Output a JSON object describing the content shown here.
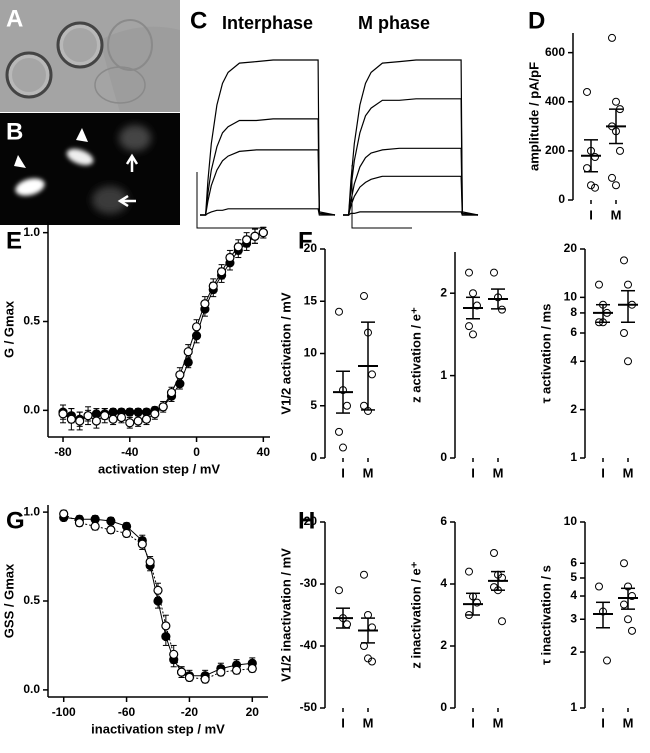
{
  "chart_data": [
    {
      "type": "image",
      "panel": "A"
    },
    {
      "type": "image",
      "panel": "B"
    },
    {
      "type": "line",
      "panel": "C",
      "title": "Interphase",
      "xlim": [
        -0.05,
        1.15
      ],
      "ylim": [
        0,
        1
      ],
      "x": [
        -0.05,
        0,
        0.02,
        0.05,
        0.1,
        0.15,
        0.2,
        0.3,
        0.45,
        0.6,
        0.8,
        1.0,
        1.01,
        1.15
      ],
      "series": [
        {
          "color": "#000000",
          "values": [
            0,
            0,
            0.22,
            0.46,
            0.71,
            0.85,
            0.92,
            0.98,
            0.99,
            1,
            1,
            1,
            0.02,
            0
          ]
        },
        {
          "color": "#000000",
          "values": [
            0,
            0,
            0.14,
            0.29,
            0.44,
            0.53,
            0.57,
            0.61,
            0.61,
            0.62,
            0.62,
            0.62,
            0.01,
            0
          ]
        },
        {
          "color": "#000000",
          "values": [
            0,
            0,
            0.09,
            0.19,
            0.29,
            0.35,
            0.38,
            0.41,
            0.42,
            0.42,
            0.42,
            0.42,
            0.01,
            0
          ]
        },
        {
          "color": "#000000",
          "values": [
            0,
            0,
            0.01,
            0.02,
            0.03,
            0.03,
            0.04,
            0.04,
            0.04,
            0.04,
            0.04,
            0.04,
            0,
            0
          ]
        }
      ]
    },
    {
      "type": "line",
      "title": "M phase",
      "xlim": [
        -0.05,
        1.15
      ],
      "ylim": [
        0,
        1
      ],
      "x": [
        -0.05,
        0,
        0.02,
        0.05,
        0.1,
        0.15,
        0.2,
        0.3,
        0.45,
        0.6,
        0.8,
        1.0,
        1.01,
        1.15
      ],
      "series": [
        {
          "color": "#000000",
          "values": [
            0,
            0,
            0.22,
            0.46,
            0.71,
            0.85,
            0.92,
            0.98,
            0.99,
            1,
            1,
            1,
            0.02,
            0
          ]
        },
        {
          "color": "#000000",
          "values": [
            0,
            0,
            0.17,
            0.35,
            0.53,
            0.64,
            0.69,
            0.74,
            0.74,
            0.75,
            0.75,
            0.75,
            0.01,
            0
          ]
        },
        {
          "color": "#000000",
          "values": [
            0,
            0,
            0.09,
            0.2,
            0.31,
            0.37,
            0.4,
            0.42,
            0.43,
            0.43,
            0.43,
            0.43,
            0.01,
            0
          ]
        },
        {
          "color": "#000000",
          "values": [
            0,
            0,
            0.06,
            0.12,
            0.18,
            0.21,
            0.23,
            0.25,
            0.25,
            0.25,
            0.25,
            0.25,
            0,
            0
          ]
        },
        {
          "color": "#000000",
          "values": [
            0,
            0,
            0.01,
            0.01,
            0.02,
            0.02,
            0.02,
            0.02,
            0.02,
            0.02,
            0.02,
            0.02,
            0,
            0
          ]
        }
      ]
    },
    {
      "type": "dotplot",
      "panel": "D",
      "y_label": "amplitude / pA/pF",
      "categories": [
        "I",
        "M"
      ],
      "ylim": [
        0,
        680
      ],
      "yticks": [
        0,
        200,
        400,
        600
      ],
      "points": [
        [
          440,
          200,
          175,
          130,
          60,
          50
        ],
        [
          660,
          400,
          370,
          300,
          280,
          200,
          90,
          60
        ]
      ],
      "means": [
        180,
        300
      ],
      "errors": [
        65,
        70
      ]
    },
    {
      "type": "scatter",
      "panel": "E",
      "x_label": "activation step / mV",
      "y_label": "G / Gmax",
      "xlim": [
        -89,
        44
      ],
      "ylim": [
        -0.15,
        1.06
      ],
      "xticks": [
        -80,
        -40,
        0,
        40
      ],
      "yticks": [
        {
          "value": 0,
          "label": "0.0"
        },
        {
          "value": 0.5,
          "label": "0.5"
        },
        {
          "value": 1,
          "label": "1.0"
        }
      ],
      "x": [
        -80,
        -75,
        -70,
        -65,
        -60,
        -55,
        -50,
        -45,
        -40,
        -35,
        -30,
        -25,
        -20,
        -15,
        -10,
        -5,
        0,
        5,
        10,
        15,
        20,
        25,
        30,
        35,
        40
      ],
      "series": [
        {
          "color": "#000000",
          "filled": true,
          "line": "solid",
          "values": [
            -0.01,
            -0.03,
            -0.05,
            -0.03,
            -0.02,
            -0.02,
            -0.01,
            -0.01,
            -0.01,
            -0.01,
            -0.01,
            0.0,
            0.02,
            0.08,
            0.15,
            0.27,
            0.42,
            0.57,
            0.68,
            0.76,
            0.83,
            0.9,
            0.94,
            0.98,
            1.0
          ],
          "errors": [
            0.04,
            0.04,
            0.04,
            0.03,
            0.03,
            0.03,
            0.02,
            0.02,
            0.02,
            0.02,
            0.02,
            0.02,
            0.02,
            0.03,
            0.03,
            0.03,
            0.04,
            0.04,
            0.04,
            0.04,
            0.04,
            0.04,
            0.04,
            0.04,
            0.03
          ]
        },
        {
          "color": "#000000",
          "filled": false,
          "line": "solid",
          "values": [
            -0.02,
            -0.05,
            -0.06,
            -0.03,
            -0.06,
            -0.03,
            -0.05,
            -0.04,
            -0.07,
            -0.06,
            -0.05,
            -0.02,
            0.02,
            0.1,
            0.2,
            0.33,
            0.47,
            0.6,
            0.7,
            0.78,
            0.86,
            0.92,
            0.96,
            0.98,
            1.0
          ],
          "errors": [
            0.05,
            0.06,
            0.05,
            0.05,
            0.04,
            0.04,
            0.03,
            0.03,
            0.03,
            0.03,
            0.03,
            0.03,
            0.03,
            0.03,
            0.04,
            0.04,
            0.04,
            0.04,
            0.04,
            0.04,
            0.04,
            0.04,
            0.04,
            0.04,
            0.03
          ]
        }
      ]
    },
    {
      "type": "dotplot",
      "panel": "F",
      "y_label": "V1/2 activation / mV",
      "categories": [
        "I",
        "M"
      ],
      "ylim": [
        0,
        20
      ],
      "yticks": [
        0,
        5,
        10,
        15,
        20
      ],
      "points": [
        [
          14,
          6.5,
          5,
          2.5,
          1
        ],
        [
          15.5,
          12,
          8,
          5,
          4.5
        ]
      ],
      "means": [
        6.3,
        8.8
      ],
      "errors": [
        2,
        4.2
      ]
    },
    {
      "type": "dotplot",
      "y_label": "z activation / e⁺",
      "categories": [
        "I",
        "M"
      ],
      "ylim": [
        0,
        2.5
      ],
      "yticks": [
        0,
        1,
        2
      ],
      "points": [
        [
          2.25,
          2.0,
          1.85,
          1.6,
          1.5
        ],
        [
          2.25,
          1.95,
          1.8
        ]
      ],
      "means": [
        1.82,
        1.93
      ],
      "errors": [
        0.13,
        0.12
      ]
    },
    {
      "type": "dotplot",
      "y_label": "τ activation / ms",
      "categories": [
        "I",
        "M"
      ],
      "log": true,
      "ylim": [
        1,
        20
      ],
      "yticks": [
        1,
        2,
        4,
        6,
        8,
        10,
        20
      ],
      "points": [
        [
          12,
          9,
          8,
          7,
          7
        ],
        [
          17,
          12,
          9,
          6,
          4
        ]
      ],
      "means": [
        8,
        9
      ],
      "errors": [
        1,
        2
      ]
    },
    {
      "type": "scatter",
      "panel": "G",
      "x_label": "inactivation step / mV",
      "y_label": "GSS / Gmax",
      "xlim": [
        -110,
        30
      ],
      "ylim": [
        -0.04,
        1.04
      ],
      "xticks": [
        -100,
        -60,
        -20,
        20
      ],
      "yticks": [
        {
          "value": 0,
          "label": "0.0"
        },
        {
          "value": 0.5,
          "label": "0.5"
        },
        {
          "value": 1,
          "label": "1.0"
        }
      ],
      "x": [
        -100,
        -90,
        -80,
        -70,
        -60,
        -50,
        -45,
        -40,
        -35,
        -30,
        -25,
        -20,
        -10,
        0,
        10,
        20
      ],
      "series": [
        {
          "color": "#000000",
          "filled": true,
          "line": "solid",
          "values": [
            0.97,
            0.96,
            0.96,
            0.95,
            0.92,
            0.84,
            0.7,
            0.5,
            0.3,
            0.17,
            0.1,
            0.08,
            0.08,
            0.12,
            0.14,
            0.15
          ],
          "errors": [
            0.02,
            0.02,
            0.02,
            0.02,
            0.02,
            0.03,
            0.03,
            0.04,
            0.05,
            0.04,
            0.03,
            0.03,
            0.03,
            0.03,
            0.03,
            0.03
          ]
        },
        {
          "color": "#000000",
          "filled": false,
          "line": "dotted",
          "values": [
            0.99,
            0.94,
            0.92,
            0.9,
            0.88,
            0.82,
            0.72,
            0.56,
            0.36,
            0.2,
            0.1,
            0.07,
            0.06,
            0.1,
            0.11,
            0.12
          ],
          "errors": [
            0.02,
            0.02,
            0.02,
            0.02,
            0.02,
            0.03,
            0.03,
            0.04,
            0.06,
            0.05,
            0.03,
            0.02,
            0.02,
            0.02,
            0.02,
            0.02
          ]
        }
      ]
    },
    {
      "type": "dotplot",
      "panel": "H",
      "y_label": "V1/2 inactivation / mV",
      "categories": [
        "I",
        "M"
      ],
      "ylim": [
        -50,
        -20
      ],
      "yticks": [
        -50,
        -40,
        -30,
        -20
      ],
      "points": [
        [
          -31,
          -35.5,
          -36.5
        ],
        [
          -28.5,
          -35,
          -37,
          -40,
          -42,
          -42.5
        ]
      ],
      "means": [
        -35.5,
        -37.5
      ],
      "errors": [
        1.6,
        2
      ]
    },
    {
      "type": "dotplot",
      "y_label": "z inactivation / e⁺",
      "categories": [
        "I",
        "M"
      ],
      "ylim": [
        0,
        6
      ],
      "yticks": [
        0,
        2,
        4,
        6
      ],
      "points": [
        [
          4.4,
          3.6,
          3.4,
          3.0
        ],
        [
          5,
          4.3,
          4.2,
          3.9,
          3.8,
          2.8
        ]
      ],
      "means": [
        3.35,
        4.1
      ],
      "errors": [
        0.35,
        0.3
      ]
    },
    {
      "type": "dotplot",
      "y_label": "τ inactivation / s",
      "categories": [
        "I",
        "M"
      ],
      "log": true,
      "ylim": [
        1,
        10
      ],
      "yticks": [
        1,
        2,
        3,
        4,
        5,
        6,
        10
      ],
      "points": [
        [
          4.5,
          3.3,
          1.8
        ],
        [
          6,
          4.5,
          4,
          3.6,
          3,
          2.6
        ]
      ],
      "means": [
        3.2,
        3.9
      ],
      "errors": [
        0.5,
        0.5
      ]
    }
  ]
}
